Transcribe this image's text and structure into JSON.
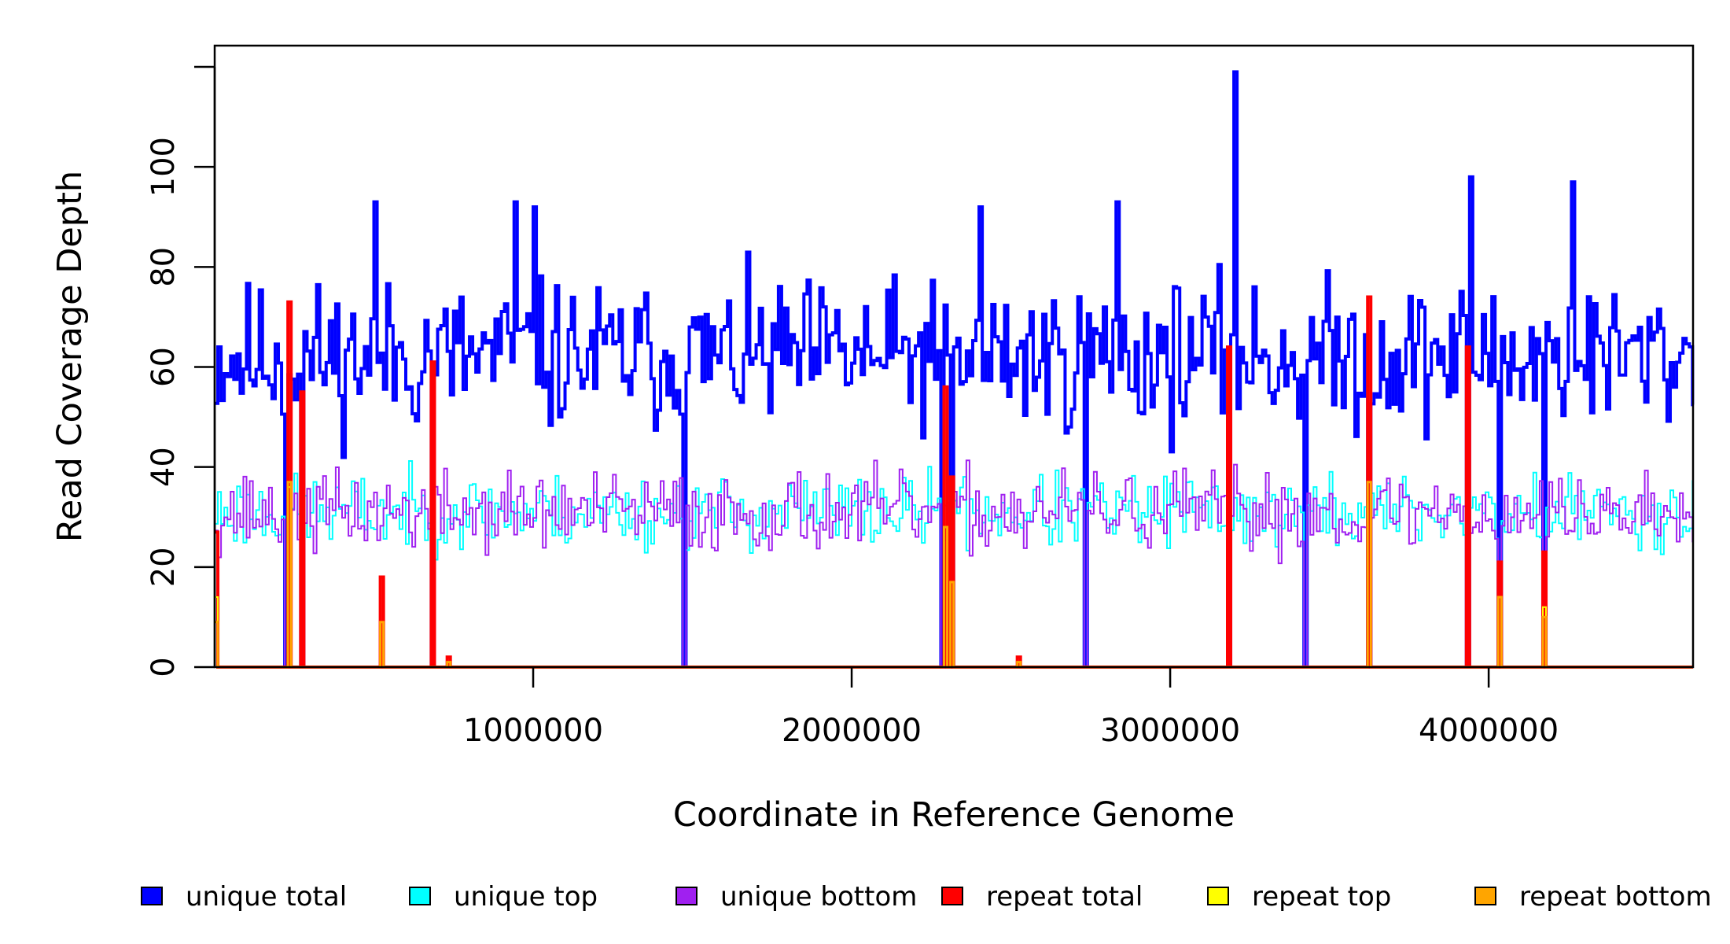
{
  "chart_data": {
    "type": "line",
    "title": "",
    "xlabel": "Coordinate in Reference Genome",
    "ylabel": "Read Coverage Depth",
    "xlim": [
      0,
      4641652
    ],
    "ylim": [
      0,
      120
    ],
    "x_ticks": [
      1000000,
      2000000,
      3000000,
      4000000
    ],
    "x_tick_labels": [
      "1000000",
      "2000000",
      "3000000",
      "4000000"
    ],
    "y_ticks": [
      0,
      20,
      40,
      60,
      80,
      100,
      120
    ],
    "y_tick_labels": [
      "0",
      "20",
      "40",
      "60",
      "80",
      "100",
      ""
    ],
    "bin_size": 10000,
    "grid": false,
    "legend_position": "bottom",
    "series": [
      {
        "name": "unique total",
        "color": "#0000ff",
        "width": 4,
        "style": "steps",
        "baseline": 62,
        "amplitude": 22,
        "seed": 11,
        "spikes": [
          [
            3200000,
            119
          ],
          [
            3940000,
            98
          ],
          [
            2400000,
            92
          ],
          [
            940000,
            93
          ],
          [
            1000000,
            92
          ],
          [
            2830000,
            93
          ],
          [
            500000,
            93
          ],
          [
            4260000,
            97
          ]
        ],
        "dropouts": [
          [
            220000,
            0
          ],
          [
            270000,
            0
          ],
          [
            685000,
            0
          ],
          [
            1470000,
            0
          ],
          [
            2285000,
            0
          ],
          [
            2310000,
            0
          ],
          [
            2730000,
            0
          ],
          [
            3185000,
            0
          ],
          [
            3425000,
            0
          ],
          [
            3620000,
            0
          ],
          [
            3935000,
            0
          ],
          [
            4035000,
            0
          ],
          [
            4175000,
            0
          ]
        ]
      },
      {
        "name": "unique top",
        "color": "#00ffff",
        "width": 2,
        "style": "steps",
        "baseline": 31,
        "amplitude": 11,
        "seed": 23,
        "spikes": [],
        "dropouts": [
          [
            220000,
            0
          ],
          [
            270000,
            0
          ],
          [
            685000,
            0
          ],
          [
            1470000,
            0
          ],
          [
            2285000,
            0
          ],
          [
            2310000,
            0
          ],
          [
            2730000,
            0
          ],
          [
            3185000,
            0
          ],
          [
            3425000,
            0
          ],
          [
            3620000,
            0
          ],
          [
            3935000,
            0
          ],
          [
            4035000,
            0
          ],
          [
            4175000,
            0
          ]
        ]
      },
      {
        "name": "unique bottom",
        "color": "#a020f0",
        "width": 2,
        "style": "steps",
        "baseline": 31,
        "amplitude": 12,
        "seed": 37,
        "spikes": [],
        "dropouts": [
          [
            220000,
            0
          ],
          [
            270000,
            0
          ],
          [
            685000,
            0
          ],
          [
            1470000,
            0
          ],
          [
            2285000,
            0
          ],
          [
            2310000,
            0
          ],
          [
            2730000,
            0
          ],
          [
            3185000,
            0
          ],
          [
            3425000,
            0
          ],
          [
            3620000,
            0
          ],
          [
            3935000,
            0
          ],
          [
            4035000,
            0
          ],
          [
            4175000,
            0
          ]
        ]
      },
      {
        "name": "repeat total",
        "color": "#ff0000",
        "width": 4,
        "style": "steps",
        "baseline": 0,
        "amplitude": 0,
        "seed": 0,
        "spikes": [
          [
            5000,
            27
          ],
          [
            230000,
            73
          ],
          [
            270000,
            55
          ],
          [
            520000,
            18
          ],
          [
            680000,
            61
          ],
          [
            730000,
            2
          ],
          [
            2290000,
            56
          ],
          [
            2310000,
            38
          ],
          [
            2520000,
            2
          ],
          [
            3180000,
            64
          ],
          [
            3620000,
            74
          ],
          [
            3930000,
            64
          ],
          [
            4030000,
            21
          ],
          [
            4170000,
            23
          ]
        ],
        "dropouts": []
      },
      {
        "name": "repeat top",
        "color": "#ffff00",
        "width": 2,
        "style": "steps",
        "baseline": 0,
        "amplitude": 0,
        "seed": 0,
        "spikes": [
          [
            5000,
            14
          ],
          [
            230000,
            36
          ],
          [
            520000,
            9
          ],
          [
            2290000,
            28
          ],
          [
            3620000,
            37
          ],
          [
            4170000,
            12
          ]
        ],
        "dropouts": []
      },
      {
        "name": "repeat bottom",
        "color": "#ffa500",
        "width": 3,
        "style": "steps",
        "baseline": 0,
        "amplitude": 0,
        "seed": 0,
        "spikes": [
          [
            5000,
            9
          ],
          [
            230000,
            37
          ],
          [
            520000,
            9
          ],
          [
            730000,
            1
          ],
          [
            2290000,
            28
          ],
          [
            2310000,
            17
          ],
          [
            2520000,
            1
          ],
          [
            3620000,
            37
          ],
          [
            4030000,
            14
          ],
          [
            4170000,
            10
          ]
        ],
        "dropouts": []
      }
    ]
  },
  "legend": {
    "items": [
      {
        "label": "unique total",
        "color": "#0000ff"
      },
      {
        "label": "unique top",
        "color": "#00ffff"
      },
      {
        "label": "unique bottom",
        "color": "#a020f0"
      },
      {
        "label": "repeat total",
        "color": "#ff0000"
      },
      {
        "label": "repeat top",
        "color": "#ffff00"
      },
      {
        "label": "repeat bottom",
        "color": "#ffa500"
      }
    ]
  }
}
